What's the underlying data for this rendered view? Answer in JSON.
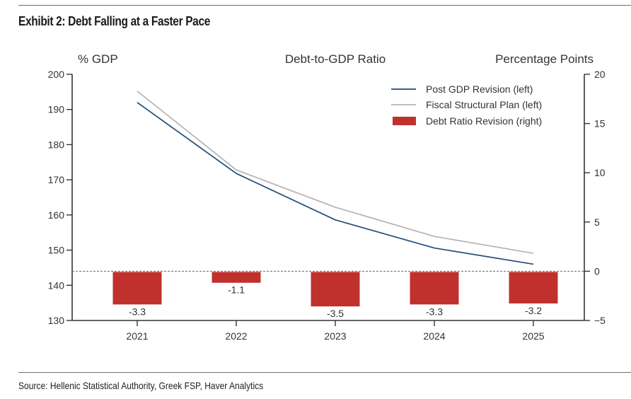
{
  "exhibit_title": "Exhibit 2: Debt Falling at a Faster Pace",
  "source": "Source: Hellenic Statistical Authority, Greek FSP, Haver Analytics",
  "chart_data": {
    "type": "line+bar",
    "title": "Debt-to-GDP Ratio",
    "ylabel_left": "% GDP",
    "ylabel_right": "Percentage Points",
    "categories": [
      "2021",
      "2022",
      "2023",
      "2024",
      "2025"
    ],
    "ylim_left": [
      130,
      200
    ],
    "yticks_left": [
      130,
      140,
      150,
      160,
      170,
      180,
      190,
      200
    ],
    "ylim_right": [
      -5,
      20
    ],
    "yticks_right": [
      -5,
      0,
      5,
      10,
      15,
      20
    ],
    "ytick_labels_right": [
      "−5",
      "0",
      "5",
      "10",
      "15",
      "20"
    ],
    "grid": false,
    "legend_position": "top-right",
    "series": [
      {
        "name": "Post GDP Revision (left)",
        "type": "line",
        "axis": "left",
        "color": "#1f4e79",
        "values": [
          192.0,
          171.8,
          158.6,
          150.6,
          146.0
        ]
      },
      {
        "name": "Fiscal Structural Plan (left)",
        "type": "line",
        "axis": "left",
        "color": "#b4b4b4",
        "values": [
          195.2,
          172.8,
          162.2,
          153.9,
          149.1
        ]
      },
      {
        "name": "Debt Ratio Revision (right)",
        "type": "bar",
        "axis": "right",
        "color": "#c0312d",
        "values": [
          -3.3,
          -1.1,
          -3.5,
          -3.3,
          -3.2
        ],
        "data_labels": [
          "-3.3",
          "-1.1",
          "-3.5",
          "-3.3",
          "-3.2"
        ]
      }
    ],
    "reference_line": {
      "axis": "right",
      "value": 0,
      "style": "dashed"
    }
  }
}
